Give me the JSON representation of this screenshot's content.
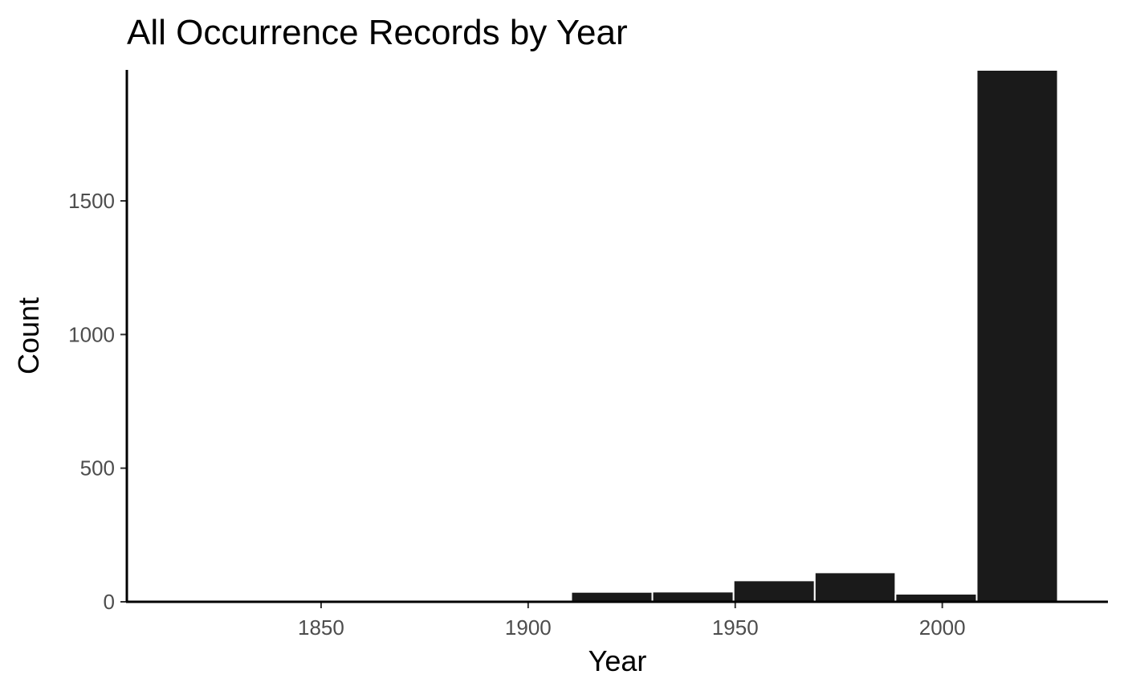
{
  "chart_data": {
    "type": "bar",
    "title": "All Occurrence Records by Year",
    "xlabel": "Year",
    "ylabel": "Count",
    "bar_color": "#1a1a1a",
    "bins": [
      {
        "start": 1812.6,
        "end": 1832.2,
        "count": 0
      },
      {
        "start": 1832.2,
        "end": 1851.7,
        "count": 0
      },
      {
        "start": 1851.7,
        "end": 1871.3,
        "count": 0
      },
      {
        "start": 1871.3,
        "end": 1890.9,
        "count": 0
      },
      {
        "start": 1890.9,
        "end": 1910.4,
        "count": 7
      },
      {
        "start": 1910.4,
        "end": 1930.0,
        "count": 37
      },
      {
        "start": 1930.0,
        "end": 1949.6,
        "count": 38
      },
      {
        "start": 1949.6,
        "end": 1969.2,
        "count": 80
      },
      {
        "start": 1969.2,
        "end": 1988.7,
        "count": 110
      },
      {
        "start": 1988.7,
        "end": 2008.3,
        "count": 30
      },
      {
        "start": 2008.3,
        "end": 2027.9,
        "count": 1990
      }
    ],
    "xlim": [
      1803.1,
      2040.0
    ],
    "ylim": [
      0,
      1990
    ],
    "x_ticks": [
      1850,
      1900,
      1950,
      2000
    ],
    "x_tick_labels": [
      "1850",
      "1900",
      "1950",
      "2000"
    ],
    "y_ticks": [
      0,
      500,
      1000,
      1500
    ],
    "y_tick_labels": [
      "0",
      "500",
      "1000",
      "1500"
    ],
    "grid": false,
    "legend": "none"
  }
}
